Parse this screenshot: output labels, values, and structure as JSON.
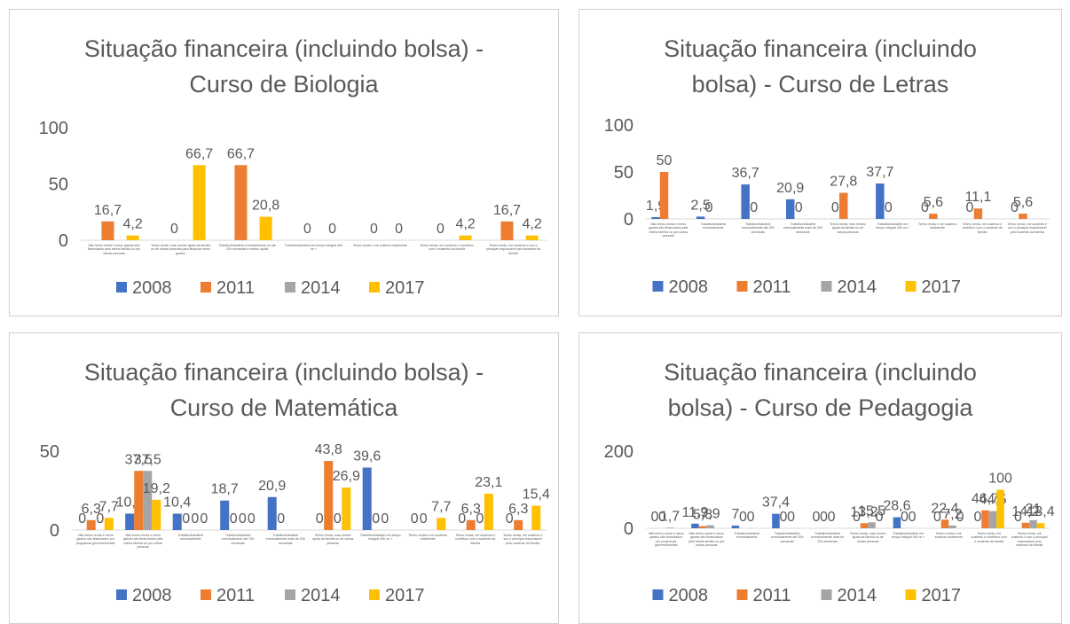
{
  "chart_data": [
    {
      "type": "bar",
      "title": "Situação financeira (incluindo bolsa) - Curso de Biologia",
      "categories": [
        "Não tenho renda e meus gastos são financiados pela minha família ou por outras pessoas",
        "Tenho renda, mas recebo ajuda da família ou de outras pessoas para financiar meus gastos",
        "Trabalho/trabalhei eventualmente ou até 20h semanais e recebo ajuda",
        "Trabalho/trabalhei em tempo integral 40h ou +",
        "Tenho renda e me sustento totalmente",
        "Tenho renda, me sustento e contribuo com o sustento da família",
        "Tenho renda, me sustento e sou o principal responsável pelo sustento da família"
      ],
      "series": [
        {
          "name": "2008",
          "color": "#4472c4",
          "values": [
            null,
            null,
            null,
            null,
            null,
            null,
            null
          ],
          "value_labels": [
            null,
            null,
            null,
            null,
            null,
            null,
            null
          ]
        },
        {
          "name": "2011",
          "color": "#ed7d31",
          "values": [
            16.7,
            0,
            66.7,
            0,
            0,
            0,
            16.7
          ],
          "value_labels": [
            "16,7",
            "0",
            "66,7",
            "0",
            "0",
            "0",
            "16,7"
          ]
        },
        {
          "name": "2014",
          "color": "#a5a5a5",
          "values": [
            null,
            null,
            null,
            null,
            null,
            null,
            null
          ],
          "value_labels": [
            null,
            null,
            null,
            null,
            null,
            null,
            null
          ]
        },
        {
          "name": "2017",
          "color": "#ffc000",
          "values": [
            4.2,
            66.7,
            20.8,
            0,
            0,
            4.2,
            4.2
          ],
          "value_labels": [
            "4,2",
            "66,7",
            "20,8",
            "0",
            "0",
            "4,2",
            "4,2"
          ]
        }
      ],
      "ylim": [
        0,
        100
      ],
      "yticks": [
        0,
        50,
        100
      ],
      "grid": false,
      "legend": "bottom"
    },
    {
      "type": "bar",
      "title": "Situação financeira (incluindo bolsa) - Curso de Letras",
      "categories": [
        "Não tenho renda e meus gastos são financiados pela minha família ou por outras pessoas",
        "Trabalho/trabalhei eventualmente",
        "Trabalho/trabalhei eventualmente até 20h semanais",
        "Trabalho/trabalhei eventualmente mais de 20h semanais",
        "Tenho renda, mas recebo ajuda da família ou de outras pessoas",
        "Trabalho/trabalhei em tempo integral 40h ou +",
        "Tenho renda e me sustento totalmente",
        "Tenho renda, me sustento e contribuo com o sustento da família",
        "Tenho renda, me sustento e sou o principal responsável pelo sustento da família"
      ],
      "series": [
        {
          "name": "2008",
          "color": "#4472c4",
          "values": [
            1.9,
            2.5,
            36.7,
            20.9,
            0,
            37.7,
            0,
            0,
            0
          ],
          "value_labels": [
            "1,9",
            "2,5",
            "36,7",
            "20,9",
            "0",
            "37,7",
            "0",
            "0",
            "0"
          ]
        },
        {
          "name": "2011",
          "color": "#ed7d31",
          "values": [
            50,
            0,
            0,
            0,
            27.8,
            0,
            5.6,
            11.1,
            5.6
          ],
          "value_labels": [
            "50",
            "0",
            "0",
            "0",
            "27,8",
            "0",
            "5,6",
            "11,1",
            "5,6"
          ]
        },
        {
          "name": "2014",
          "color": "#a5a5a5",
          "values": [
            null,
            null,
            null,
            null,
            null,
            null,
            null,
            null,
            null
          ],
          "value_labels": [
            null,
            null,
            null,
            null,
            null,
            null,
            null,
            null,
            null
          ]
        },
        {
          "name": "2017",
          "color": "#ffc000",
          "values": [
            null,
            null,
            null,
            null,
            null,
            null,
            null,
            null,
            null
          ],
          "value_labels": [
            null,
            null,
            null,
            null,
            null,
            null,
            null,
            null,
            null
          ]
        }
      ],
      "ylim": [
        0,
        100
      ],
      "yticks": [
        0,
        50,
        100
      ],
      "grid": false,
      "legend": "bottom"
    },
    {
      "type": "bar",
      "title": "Situação financeira (incluindo bolsa) - Curso de Matemática",
      "categories": [
        "Não tenho renda e meus gastos são financiados por programas governamentais",
        "Não tenho renda e meus gastos são financiados pela minha família ou por outras pessoas",
        "Trabalho/trabalhei eventualmente",
        "Trabalho/trabalhei eventualmente até 20h semanais",
        "Trabalho/trabalhei eventualmente mais de 20h semanais",
        "Tenho renda, mas recebo ajuda da família ou de outras pessoas",
        "Trabalho/trabalhei em tempo integral 40h ou +",
        "Tenho renda e me sustento totalmente",
        "Tenho renda, me sustento e contribuo com o sustento da família",
        "Tenho renda, me sustento e sou o principal responsável pelo sustento da família"
      ],
      "series": [
        {
          "name": "2008",
          "color": "#4472c4",
          "values": [
            0,
            10.4,
            10.4,
            18.7,
            20.9,
            0,
            39.6,
            0,
            0,
            0
          ],
          "value_labels": [
            "0",
            "10,4",
            "10,4",
            "18,7",
            "20,9",
            "0",
            "39,6",
            "0",
            "0",
            "0"
          ]
        },
        {
          "name": "2011",
          "color": "#ed7d31",
          "values": [
            6.3,
            37.5,
            0,
            0,
            0,
            43.8,
            0,
            0,
            6.3,
            6.3
          ],
          "value_labels": [
            "6,3",
            "37,5",
            "0",
            "0",
            "0",
            "43,8",
            "0",
            "0",
            "6,3",
            "6,3"
          ]
        },
        {
          "name": "2014",
          "color": "#a5a5a5",
          "values": [
            0,
            37.5,
            0,
            0,
            null,
            0,
            0,
            null,
            0,
            null
          ],
          "value_labels": [
            "0",
            "37,5",
            "0",
            "0",
            null,
            "0",
            "0",
            null,
            "0",
            null
          ]
        },
        {
          "name": "2017",
          "color": "#ffc000",
          "values": [
            7.7,
            19.2,
            0,
            0,
            null,
            26.9,
            null,
            7.7,
            23.1,
            15.4
          ],
          "value_labels": [
            "7,7",
            "19,2",
            "0",
            "0",
            null,
            "26,9",
            null,
            "7,7",
            "23,1",
            "15,4"
          ]
        }
      ],
      "ylim": [
        0,
        50
      ],
      "yticks": [
        0,
        50
      ],
      "grid": false,
      "legend": "bottom"
    },
    {
      "type": "bar",
      "title": "Situação financeira (incluindo bolsa) - Curso de Pedagogia",
      "categories": [
        "Não tenho renda e meus gastos são financiados por programas governamentais",
        "Não tenho renda e meus gastos são financiados pela minha família ou por outras pessoas",
        "Trabalho/trabalhei eventualmente",
        "Trabalho/trabalhei eventualmente até 20h semanais",
        "Trabalho/trabalhei eventualmente mais de 20h semanais",
        "Tenho renda, mas recebo ajuda da família ou de outras pessoas",
        "Trabalho/trabalhei em tempo integral 40h ou +",
        "Tenho renda e me sustento totalmente",
        "Tenho renda, me sustento e contribuo com o sustento da família",
        "Tenho renda, me sustento e sou o principal responsável pelo sustento da família"
      ],
      "series": [
        {
          "name": "2008",
          "color": "#4472c4",
          "values": [
            0,
            11.9,
            7,
            37.4,
            0,
            0,
            28.6,
            0,
            0,
            0
          ],
          "value_labels": [
            "0",
            "11,9",
            "7",
            "37,4",
            "0",
            "0",
            "28,6",
            "0",
            "0",
            "0"
          ]
        },
        {
          "name": "2011",
          "color": "#ed7d31",
          "values": [
            0,
            5.8,
            0,
            0,
            0,
            13.2,
            0,
            22.4,
            46.7,
            14.2
          ],
          "value_labels": [
            "0",
            "5,8",
            "0",
            "0",
            "0",
            "13,2",
            "0",
            "22,4",
            "46,7",
            "14,2"
          ]
        },
        {
          "name": "2014",
          "color": "#a5a5a5",
          "values": [
            1.7,
            7.9,
            0,
            0,
            0,
            15.5,
            0,
            7.2,
            44.5,
            21
          ],
          "value_labels": [
            "1,7",
            "7,9",
            "0",
            "0",
            "0",
            "15,5",
            "0",
            "7,2",
            "44,5",
            "21"
          ]
        },
        {
          "name": "2017",
          "color": "#ffc000",
          "values": [
            null,
            null,
            null,
            null,
            null,
            0,
            null,
            0,
            100,
            13.4
          ],
          "value_labels": [
            null,
            null,
            null,
            null,
            null,
            "0",
            null,
            "0",
            "100",
            "13,4"
          ]
        }
      ],
      "ylim": [
        0,
        200
      ],
      "yticks": [
        0,
        200
      ],
      "grid": false,
      "legend": "bottom"
    }
  ]
}
